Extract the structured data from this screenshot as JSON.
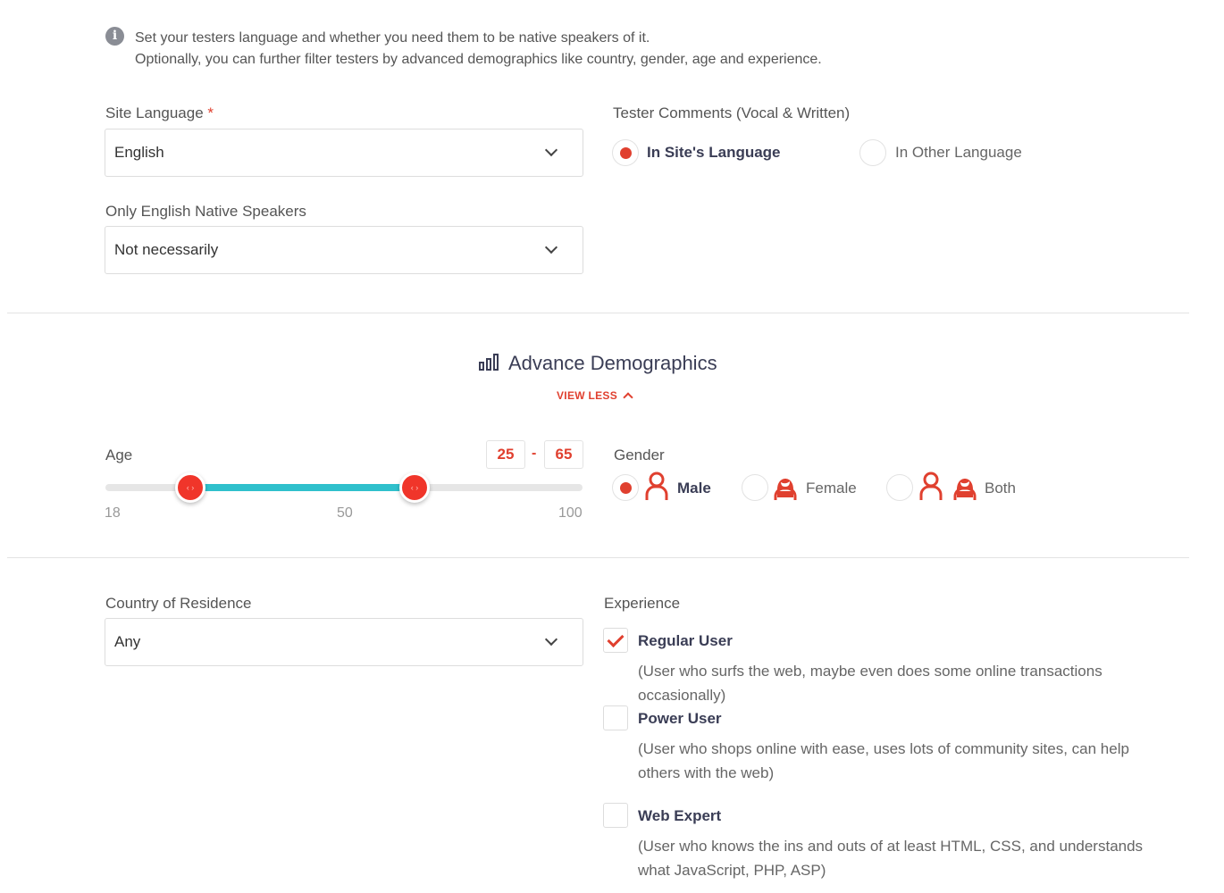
{
  "info": {
    "line1": "Set your testers language and whether you need them to be native speakers of it.",
    "line2": "Optionally, you can further filter testers by advanced demographics like country, gender, age and experience."
  },
  "site_language": {
    "label": "Site Language",
    "required": "*",
    "value": "English"
  },
  "native": {
    "label": "Only English Native Speakers",
    "value": "Not necessarily"
  },
  "comments": {
    "label": "Tester Comments (Vocal & Written)",
    "options": [
      {
        "label": "In Site's Language",
        "selected": true
      },
      {
        "label": "In Other Language",
        "selected": false
      }
    ]
  },
  "demographics": {
    "title": "Advance Demographics",
    "toggle": "VIEW LESS"
  },
  "age": {
    "label": "Age",
    "min_value": "25",
    "sep": "-",
    "max_value": "65",
    "low": 25,
    "high": 65,
    "ticks": [
      "18",
      "50",
      "100"
    ]
  },
  "gender": {
    "label": "Gender",
    "options": [
      {
        "label": "Male",
        "selected": true
      },
      {
        "label": "Female",
        "selected": false
      },
      {
        "label": "Both",
        "selected": false
      }
    ]
  },
  "country": {
    "label": "Country of Residence",
    "value": "Any"
  },
  "experience": {
    "label": "Experience",
    "items": [
      {
        "title": "Regular User",
        "desc": "(User who surfs the web, maybe even does some online transactions occasionally)",
        "checked": true
      },
      {
        "title": "Power User",
        "desc": "(User who shops online with ease, uses lots of community sites, can help others with the web)",
        "checked": false
      },
      {
        "title": "Web Expert",
        "desc": "(User who knows the ins and outs of at least HTML, CSS, and understands what JavaScript, PHP, ASP)",
        "checked": false
      }
    ]
  },
  "colors": {
    "accent": "#e0402f",
    "slider_fill": "#2fc0cc"
  }
}
